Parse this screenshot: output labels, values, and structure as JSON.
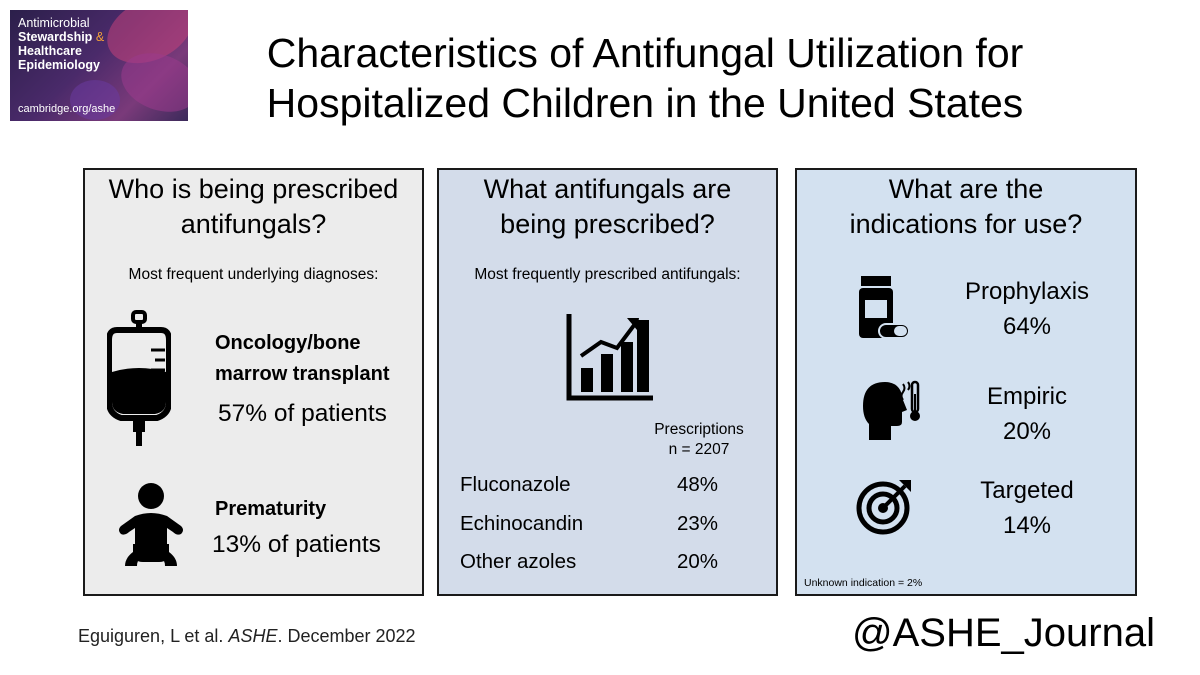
{
  "logo": {
    "line1": "Antimicrobial",
    "line2a": "Stewardship",
    "line2b": "&",
    "line3": "Healthcare",
    "line4": "Epidemiology",
    "url": "cambridge.org/ashe"
  },
  "title": {
    "line1": "Characteristics of Antifungal Utilization for",
    "line2": "Hospitalized Children in the United States"
  },
  "panel_who": {
    "heading1": "Who is being prescribed",
    "heading2": "antifungals?",
    "subheading": "Most frequent underlying diagnoses:",
    "items": [
      {
        "icon": "iv-bag-icon",
        "label1": "Oncology/bone",
        "label2": "marrow transplant",
        "value": "57% of patients"
      },
      {
        "icon": "baby-icon",
        "label1": "Prematurity",
        "label2": "",
        "value": "13% of patients"
      }
    ]
  },
  "panel_what": {
    "heading1": "What antifungals are",
    "heading2": "being prescribed?",
    "subheading": "Most frequently prescribed antifungals:",
    "icon": "bar-chart-trend-icon",
    "col_header1": "Prescriptions",
    "col_header2": "n = 2207",
    "rows": [
      {
        "drug": "Fluconazole",
        "pct": "48%"
      },
      {
        "drug": "Echinocandin",
        "pct": "23%"
      },
      {
        "drug": "Other azoles",
        "pct": "20%"
      }
    ]
  },
  "panel_indications": {
    "heading1": "What are the",
    "heading2": "indications for use?",
    "items": [
      {
        "icon": "pill-bottle-icon",
        "label": "Prophylaxis",
        "pct": "64%"
      },
      {
        "icon": "fever-head-icon",
        "label": "Empiric",
        "pct": "20%"
      },
      {
        "icon": "target-icon",
        "label": "Targeted",
        "pct": "14%"
      }
    ],
    "footnote": "Unknown indication = 2%"
  },
  "citation": {
    "authors": "Eguiguren, L et al. ",
    "journal": "ASHE",
    "date": ". December 2022"
  },
  "handle": "@ASHE_Journal"
}
